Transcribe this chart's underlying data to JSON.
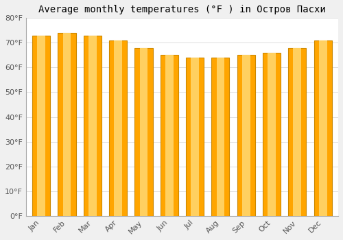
{
  "title": "Average monthly temperatures (°F ) in Остров Пасхи",
  "months": [
    "Jan",
    "Feb",
    "Mar",
    "Apr",
    "May",
    "Jun",
    "Jul",
    "Aug",
    "Sep",
    "Oct",
    "Nov",
    "Dec"
  ],
  "values": [
    73,
    74,
    73,
    71,
    68,
    65,
    64,
    64,
    65,
    66,
    68,
    71
  ],
  "bar_color_main": "#FFA500",
  "bar_color_light": "#FFD060",
  "bar_edge_color": "#CC8800",
  "plot_bg_color": "#FFFFFF",
  "fig_bg_color": "#F0F0F0",
  "grid_color": "#DDDDDD",
  "ylim": [
    0,
    80
  ],
  "yticks": [
    0,
    10,
    20,
    30,
    40,
    50,
    60,
    70,
    80
  ],
  "ytick_labels": [
    "0°F",
    "10°F",
    "20°F",
    "30°F",
    "40°F",
    "50°F",
    "60°F",
    "70°F",
    "80°F"
  ],
  "title_fontsize": 10,
  "tick_fontsize": 8,
  "bar_width": 0.7
}
